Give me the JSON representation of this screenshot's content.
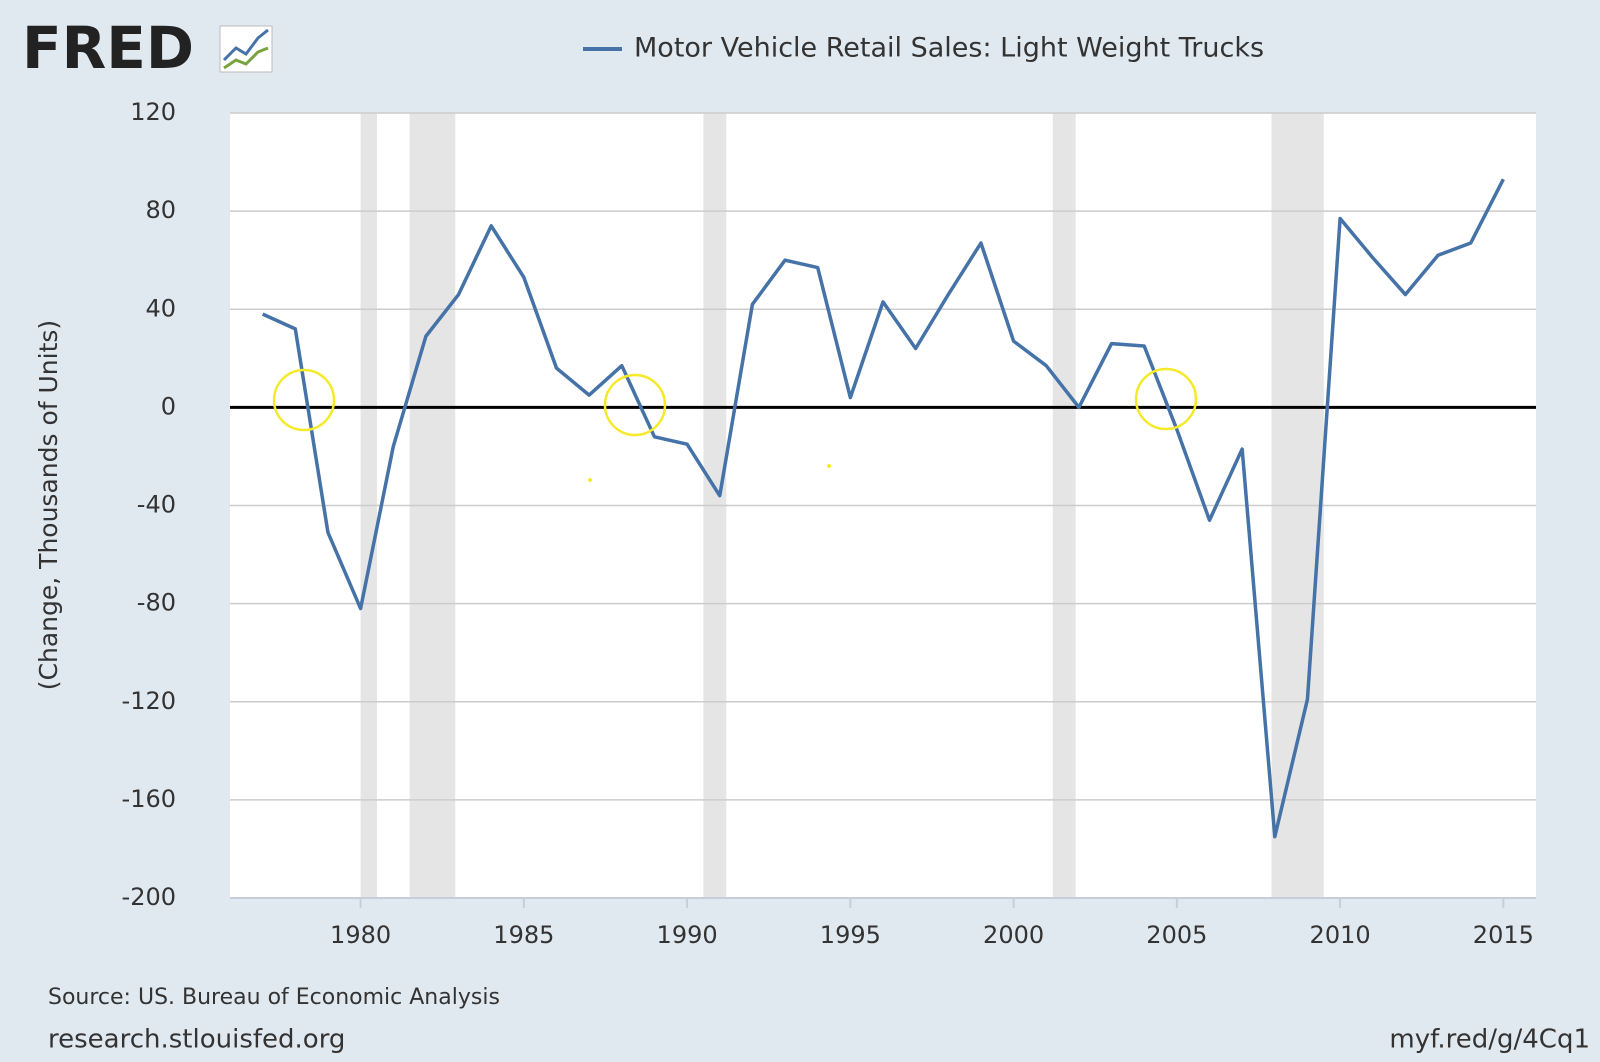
{
  "logo": "FRED",
  "chart_data": {
    "type": "line",
    "title": "Motor Vehicle Retail Sales: Light Weight Trucks",
    "y_label": "(Change, Thousands of Units)",
    "source": "Source: US. Bureau of Economic Analysis",
    "site": "research.stlouisfed.org",
    "short_url": "myf.red/g/4Cq1",
    "x": [
      1977,
      1978,
      1979,
      1980,
      1981,
      1982,
      1983,
      1984,
      1985,
      1986,
      1987,
      1988,
      1989,
      1990,
      1991,
      1992,
      1993,
      1994,
      1995,
      1996,
      1997,
      1998,
      1999,
      2000,
      2001,
      2002,
      2003,
      2004,
      2005,
      2006,
      2007,
      2008,
      2009,
      2010,
      2011,
      2012,
      2013,
      2014,
      2015
    ],
    "series": [
      {
        "name": "Motor Vehicle Retail Sales: Light Weight Trucks",
        "color": "#4572a7",
        "values": [
          38,
          32,
          -51,
          -82,
          -16,
          29,
          46,
          74,
          53,
          16,
          5,
          17,
          -12,
          -15,
          -36,
          42,
          60,
          57,
          4,
          43,
          24,
          46,
          67,
          27,
          17,
          0,
          26,
          25,
          -9,
          -46,
          -17,
          -175,
          -119,
          77,
          61,
          46,
          62,
          67,
          93
        ]
      }
    ],
    "recessions": [
      [
        1980.0,
        1980.5
      ],
      [
        1981.5,
        1982.9
      ],
      [
        1990.5,
        1991.2
      ],
      [
        2001.2,
        2001.9
      ],
      [
        2007.9,
        2009.5
      ]
    ],
    "hline": 0,
    "xlim": [
      1976,
      2016
    ],
    "xticks": [
      1980,
      1985,
      1990,
      1995,
      2000,
      2005,
      2010,
      2015
    ],
    "ylim": [
      -200,
      120
    ],
    "yticks": [
      -200,
      -160,
      -120,
      -80,
      -40,
      0,
      40,
      80,
      120
    ],
    "grid": true
  }
}
